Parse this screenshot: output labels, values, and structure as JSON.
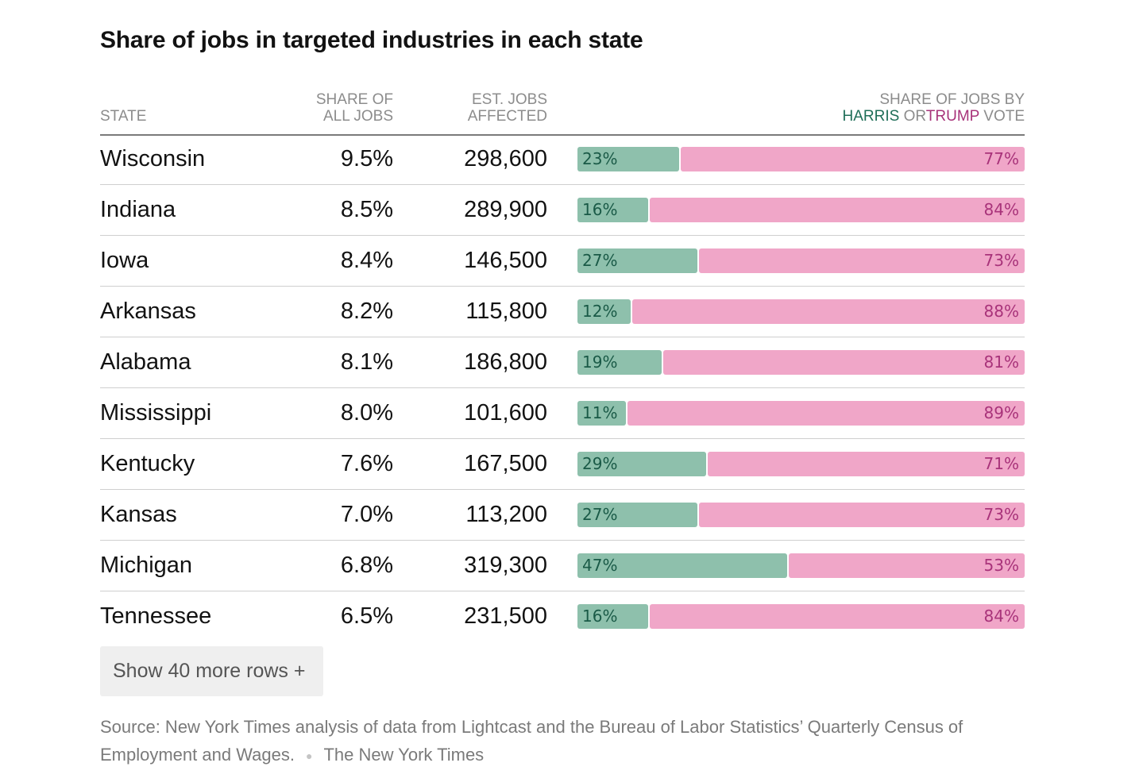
{
  "title": "Share of jobs in targeted industries in each state",
  "header": {
    "state": "STATE",
    "share_line1": "SHARE OF",
    "share_line2": "ALL JOBS",
    "jobs_line1": "EST. JOBS",
    "jobs_line2": "AFFECTED",
    "bar_line1": "SHARE OF JOBS BY",
    "bar_harris": "HARRIS",
    "bar_or": "OR",
    "bar_trump": "TRUMP",
    "bar_vote": "VOTE"
  },
  "colors": {
    "harris_bar": "#8ec0ac",
    "harris_text": "#1f6e58",
    "trump_bar": "#f0a6c8",
    "trump_text": "#a8337a"
  },
  "chart_data": {
    "type": "table",
    "columns": [
      "STATE",
      "SHARE OF ALL JOBS",
      "EST. JOBS AFFECTED",
      "SHARE OF JOBS BY HARRIS OR TRUMP VOTE"
    ],
    "rows": [
      {
        "state": "Wisconsin",
        "share": "9.5%",
        "jobs": "298,600",
        "harris": 23,
        "trump": 77
      },
      {
        "state": "Indiana",
        "share": "8.5%",
        "jobs": "289,900",
        "harris": 16,
        "trump": 84
      },
      {
        "state": "Iowa",
        "share": "8.4%",
        "jobs": "146,500",
        "harris": 27,
        "trump": 73
      },
      {
        "state": "Arkansas",
        "share": "8.2%",
        "jobs": "115,800",
        "harris": 12,
        "trump": 88
      },
      {
        "state": "Alabama",
        "share": "8.1%",
        "jobs": "186,800",
        "harris": 19,
        "trump": 81
      },
      {
        "state": "Mississippi",
        "share": "8.0%",
        "jobs": "101,600",
        "harris": 11,
        "trump": 89
      },
      {
        "state": "Kentucky",
        "share": "7.6%",
        "jobs": "167,500",
        "harris": 29,
        "trump": 71
      },
      {
        "state": "Kansas",
        "share": "7.0%",
        "jobs": "113,200",
        "harris": 27,
        "trump": 73
      },
      {
        "state": "Michigan",
        "share": "6.8%",
        "jobs": "319,300",
        "harris": 47,
        "trump": 53
      },
      {
        "state": "Tennessee",
        "share": "6.5%",
        "jobs": "231,500",
        "harris": 16,
        "trump": 84
      }
    ]
  },
  "more_button": "Show 40 more rows +",
  "source": {
    "text": "Source: New York Times analysis of data from Lightcast and the Bureau of Labor Statistics’ Quarterly Census of Employment and Wages.",
    "credit": "The New York Times"
  }
}
